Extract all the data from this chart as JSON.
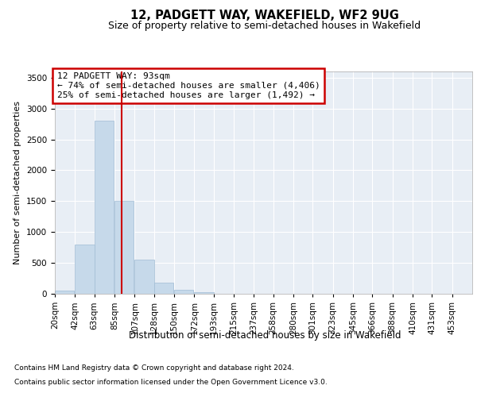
{
  "title": "12, PADGETT WAY, WAKEFIELD, WF2 9UG",
  "subtitle": "Size of property relative to semi-detached houses in Wakefield",
  "xlabel": "Distribution of semi-detached houses by size in Wakefield",
  "ylabel": "Number of semi-detached properties",
  "footnote1": "Contains HM Land Registry data © Crown copyright and database right 2024.",
  "footnote2": "Contains public sector information licensed under the Open Government Licence v3.0.",
  "annotation_line1": "12 PADGETT WAY: 93sqm",
  "annotation_line2": "← 74% of semi-detached houses are smaller (4,406)",
  "annotation_line3": "25% of semi-detached houses are larger (1,492) →",
  "tick_labels": [
    "20sqm",
    "42sqm",
    "63sqm",
    "85sqm",
    "107sqm",
    "128sqm",
    "150sqm",
    "172sqm",
    "193sqm",
    "215sqm",
    "237sqm",
    "258sqm",
    "280sqm",
    "301sqm",
    "323sqm",
    "345sqm",
    "366sqm",
    "388sqm",
    "410sqm",
    "431sqm",
    "453sqm"
  ],
  "tick_vals": [
    20,
    42,
    63,
    85,
    107,
    128,
    150,
    172,
    193,
    215,
    237,
    258,
    280,
    301,
    323,
    345,
    366,
    388,
    410,
    431,
    453
  ],
  "bar_heights": [
    50,
    800,
    2800,
    1500,
    550,
    175,
    60,
    30,
    5,
    0,
    2,
    0,
    0,
    0,
    0,
    0,
    0,
    0,
    0,
    0,
    0
  ],
  "bar_color": "#c6d9ea",
  "bar_edgecolor": "#a0bcd4",
  "vline_x": 93,
  "vline_color": "#cc0000",
  "annotation_box_edgecolor": "#cc0000",
  "ylim": [
    0,
    3600
  ],
  "yticks": [
    0,
    500,
    1000,
    1500,
    2000,
    2500,
    3000,
    3500
  ],
  "plot_background": "#e8eef5",
  "title_fontsize": 10.5,
  "subtitle_fontsize": 9,
  "ylabel_fontsize": 8,
  "tick_fontsize": 7.5,
  "annotation_fontsize": 8,
  "xlabel_fontsize": 8.5,
  "footnote_fontsize": 6.5
}
